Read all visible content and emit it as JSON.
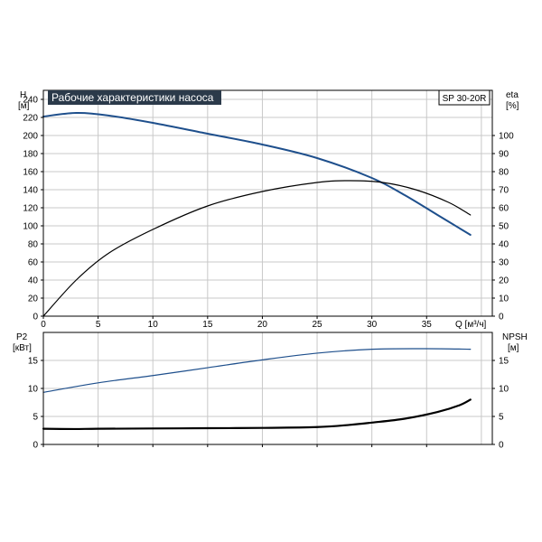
{
  "chart_data": [
    {
      "type": "line",
      "title": "Рабочие характеристики насоса",
      "model_label": "SP 30-20R",
      "xlabel": "Q [м³/ч]",
      "xlim": [
        0,
        41
      ],
      "xticks": [
        0,
        5,
        10,
        15,
        20,
        25,
        30,
        35
      ],
      "grid": true,
      "left_axis": {
        "label_line1": "H",
        "label_line2": "[м]",
        "ylim": [
          0,
          250
        ],
        "ticks": [
          0,
          20,
          40,
          60,
          80,
          100,
          120,
          140,
          160,
          180,
          200,
          220,
          240
        ]
      },
      "right_axis": {
        "label_line1": "eta",
        "label_line2": "[%]",
        "ylim": [
          0,
          125
        ],
        "ticks": [
          0,
          10,
          20,
          30,
          40,
          50,
          60,
          70,
          80,
          90,
          100
        ]
      },
      "series": [
        {
          "axis": "left",
          "color": "#1e4f8c",
          "x": [
            0,
            3,
            6,
            10,
            15,
            20,
            25,
            30,
            33,
            36,
            39
          ],
          "y": [
            221,
            225,
            222,
            214,
            202,
            190,
            175,
            153,
            134,
            112,
            90
          ]
        },
        {
          "axis": "right",
          "color": "#000000",
          "x": [
            0,
            3,
            6,
            10,
            15,
            20,
            25,
            28,
            31,
            34,
            37,
            39
          ],
          "y": [
            0,
            20,
            35,
            48,
            61,
            69,
            74,
            75,
            74,
            70,
            63,
            56
          ]
        }
      ]
    },
    {
      "type": "line",
      "xlim": [
        0,
        41
      ],
      "xticks": [
        0,
        5,
        10,
        15,
        20,
        25,
        30,
        35
      ],
      "grid": true,
      "left_axis": {
        "label_line1": "P2",
        "label_line2": "[кВт]",
        "ylim": [
          0,
          20
        ],
        "ticks": [
          0,
          5,
          10,
          15
        ]
      },
      "right_axis": {
        "label_line1": "NPSH",
        "label_line2": "[м]",
        "ylim": [
          0,
          20
        ],
        "ticks": [
          0,
          5,
          10,
          15
        ]
      },
      "series": [
        {
          "axis": "left",
          "color": "#1e4f8c",
          "x": [
            0,
            5,
            10,
            15,
            20,
            25,
            30,
            35,
            39
          ],
          "y": [
            9.3,
            11.0,
            12.3,
            13.7,
            15.1,
            16.3,
            17.0,
            17.1,
            17.0
          ]
        },
        {
          "axis": "right",
          "color": "#000000",
          "x": [
            0,
            2.8,
            5,
            10,
            15,
            20,
            25,
            28,
            30,
            33,
            36,
            38,
            39
          ],
          "y": [
            2.8,
            2.75,
            2.8,
            2.85,
            2.9,
            2.95,
            3.1,
            3.5,
            3.9,
            4.6,
            5.8,
            7.0,
            8.0
          ]
        }
      ]
    }
  ]
}
